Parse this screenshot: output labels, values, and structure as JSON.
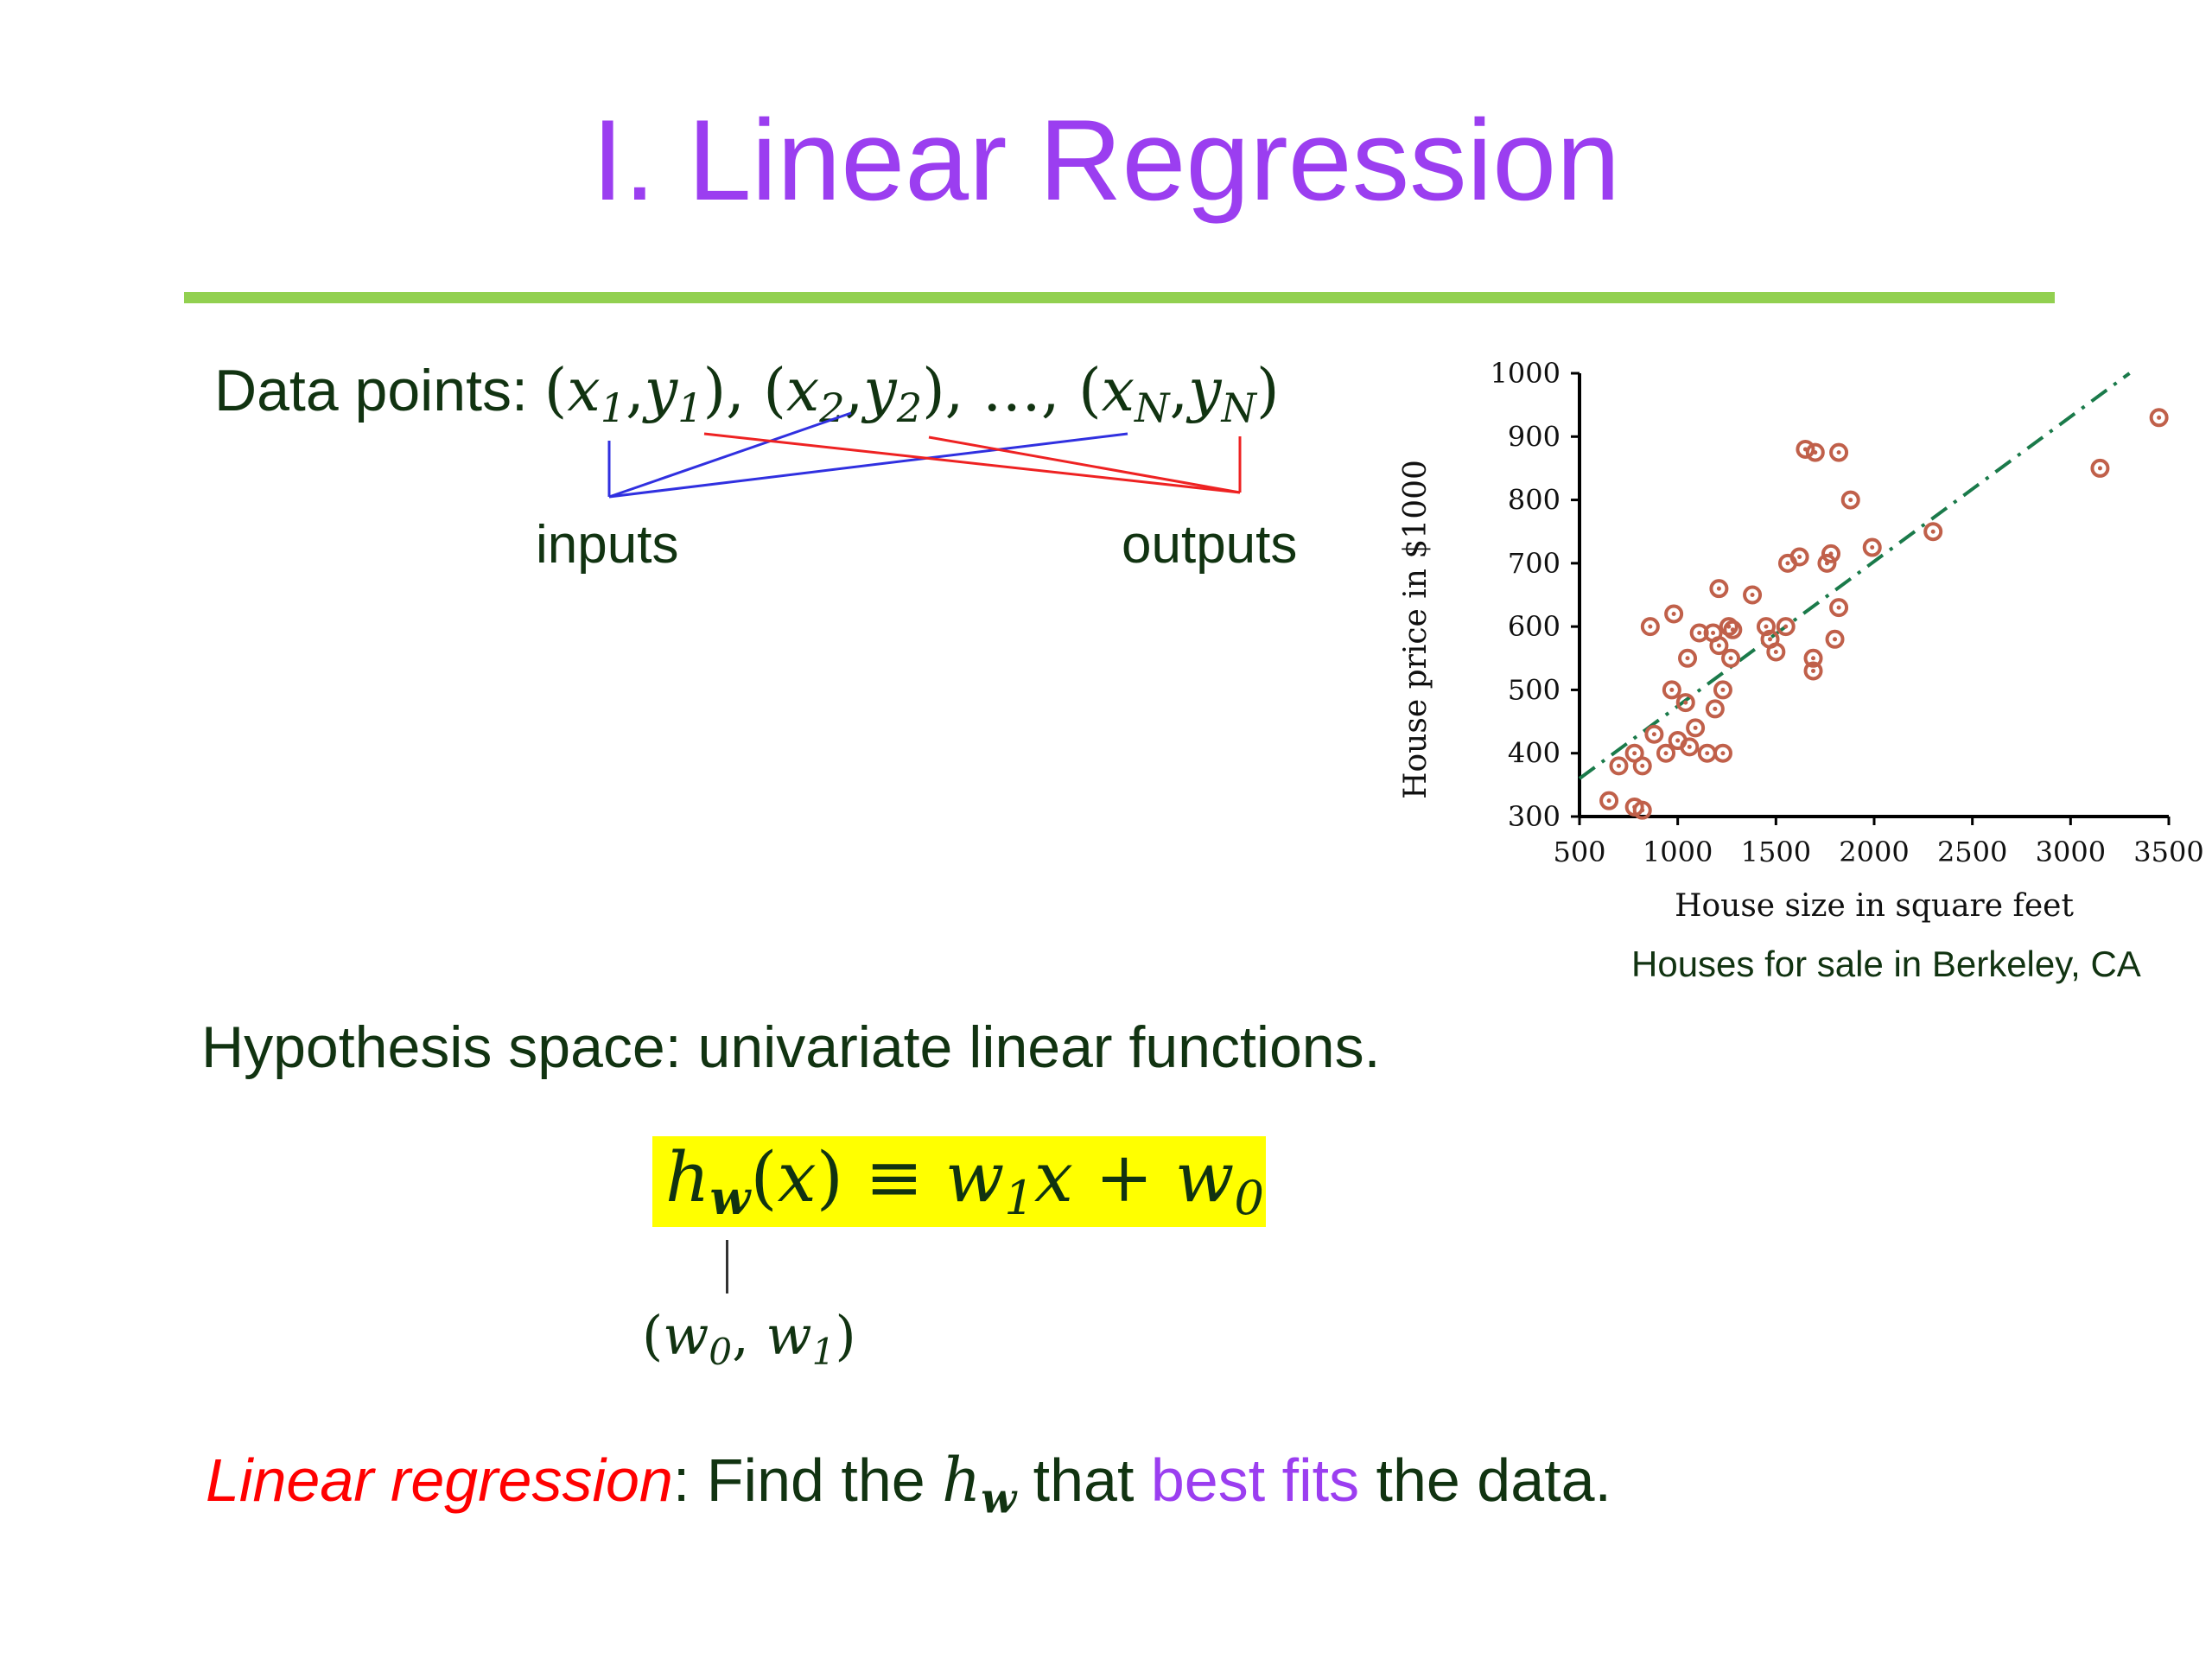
{
  "slide": {
    "title": "I. Linear Regression",
    "data_points_label": "Data points:",
    "pairs": {
      "open": "(",
      "comma": ",",
      "close": ")",
      "sep": ", ",
      "ellipsis": "…",
      "x": "x",
      "y": "y",
      "sub1": "1",
      "sub2": "2",
      "subN": "N"
    },
    "inputs_label": "inputs",
    "outputs_label": "outputs",
    "hypothesis_text": "Hypothesis space: univariate linear functions.",
    "formula": {
      "h": "h",
      "w_bold": "w",
      "arg": "(x)",
      "equiv": " ≡ ",
      "w1": "w",
      "sub1": "1",
      "x": "x",
      "plus": " + ",
      "w0": "w",
      "sub0": "0"
    },
    "weights": {
      "open": "(",
      "w_a": "w",
      "sub0": "0",
      "comma": ", ",
      "w_b": "w",
      "sub1": "1",
      "close": ")"
    },
    "conclusion": {
      "term": "Linear regression",
      "colon_find": ": Find the ",
      "h": "h",
      "w": "w",
      "that": " that ",
      "best_fits": "best fits",
      "rest": " the data."
    },
    "chart_caption": "Houses for sale in Berkeley, CA",
    "colors": {
      "title": "#9b3ef0",
      "rule": "#92d050",
      "text": "#113311",
      "highlight": "#ffff00",
      "emphasis_red": "#ff0000",
      "line_blue": "#3030e0",
      "line_red": "#ee2222",
      "points": "#c0604a",
      "fit_line": "#1a7a4a"
    }
  },
  "chart_data": {
    "type": "scatter",
    "xlabel": "House size in square feet",
    "ylabel": "House price in $1000",
    "xlim": [
      500,
      3500
    ],
    "ylim": [
      300,
      1000
    ],
    "xticks": [
      500,
      1000,
      1500,
      2000,
      2500,
      3000,
      3500
    ],
    "yticks": [
      300,
      400,
      500,
      600,
      700,
      800,
      900,
      1000
    ],
    "grid": false,
    "points": [
      [
        650,
        325
      ],
      [
        780,
        315
      ],
      [
        820,
        310
      ],
      [
        700,
        380
      ],
      [
        780,
        400
      ],
      [
        820,
        380
      ],
      [
        880,
        430
      ],
      [
        860,
        600
      ],
      [
        940,
        400
      ],
      [
        980,
        620
      ],
      [
        970,
        500
      ],
      [
        1000,
        420
      ],
      [
        1040,
        480
      ],
      [
        1050,
        550
      ],
      [
        1060,
        410
      ],
      [
        1090,
        440
      ],
      [
        1110,
        590
      ],
      [
        1150,
        400
      ],
      [
        1180,
        590
      ],
      [
        1190,
        470
      ],
      [
        1210,
        570
      ],
      [
        1230,
        500
      ],
      [
        1230,
        400
      ],
      [
        1210,
        660
      ],
      [
        1260,
        600
      ],
      [
        1270,
        550
      ],
      [
        1280,
        595
      ],
      [
        1380,
        650
      ],
      [
        1450,
        600
      ],
      [
        1470,
        580
      ],
      [
        1500,
        560
      ],
      [
        1550,
        600
      ],
      [
        1560,
        700
      ],
      [
        1620,
        710
      ],
      [
        1650,
        880
      ],
      [
        1700,
        875
      ],
      [
        1690,
        530
      ],
      [
        1690,
        550
      ],
      [
        1760,
        700
      ],
      [
        1780,
        715
      ],
      [
        1800,
        580
      ],
      [
        1820,
        630
      ],
      [
        1820,
        875
      ],
      [
        1880,
        800
      ],
      [
        1990,
        725
      ],
      [
        2300,
        750
      ],
      [
        3150,
        850
      ],
      [
        3450,
        930
      ]
    ],
    "fit_line": {
      "x": [
        500,
        3300
      ],
      "y": [
        360,
        1000
      ]
    }
  }
}
